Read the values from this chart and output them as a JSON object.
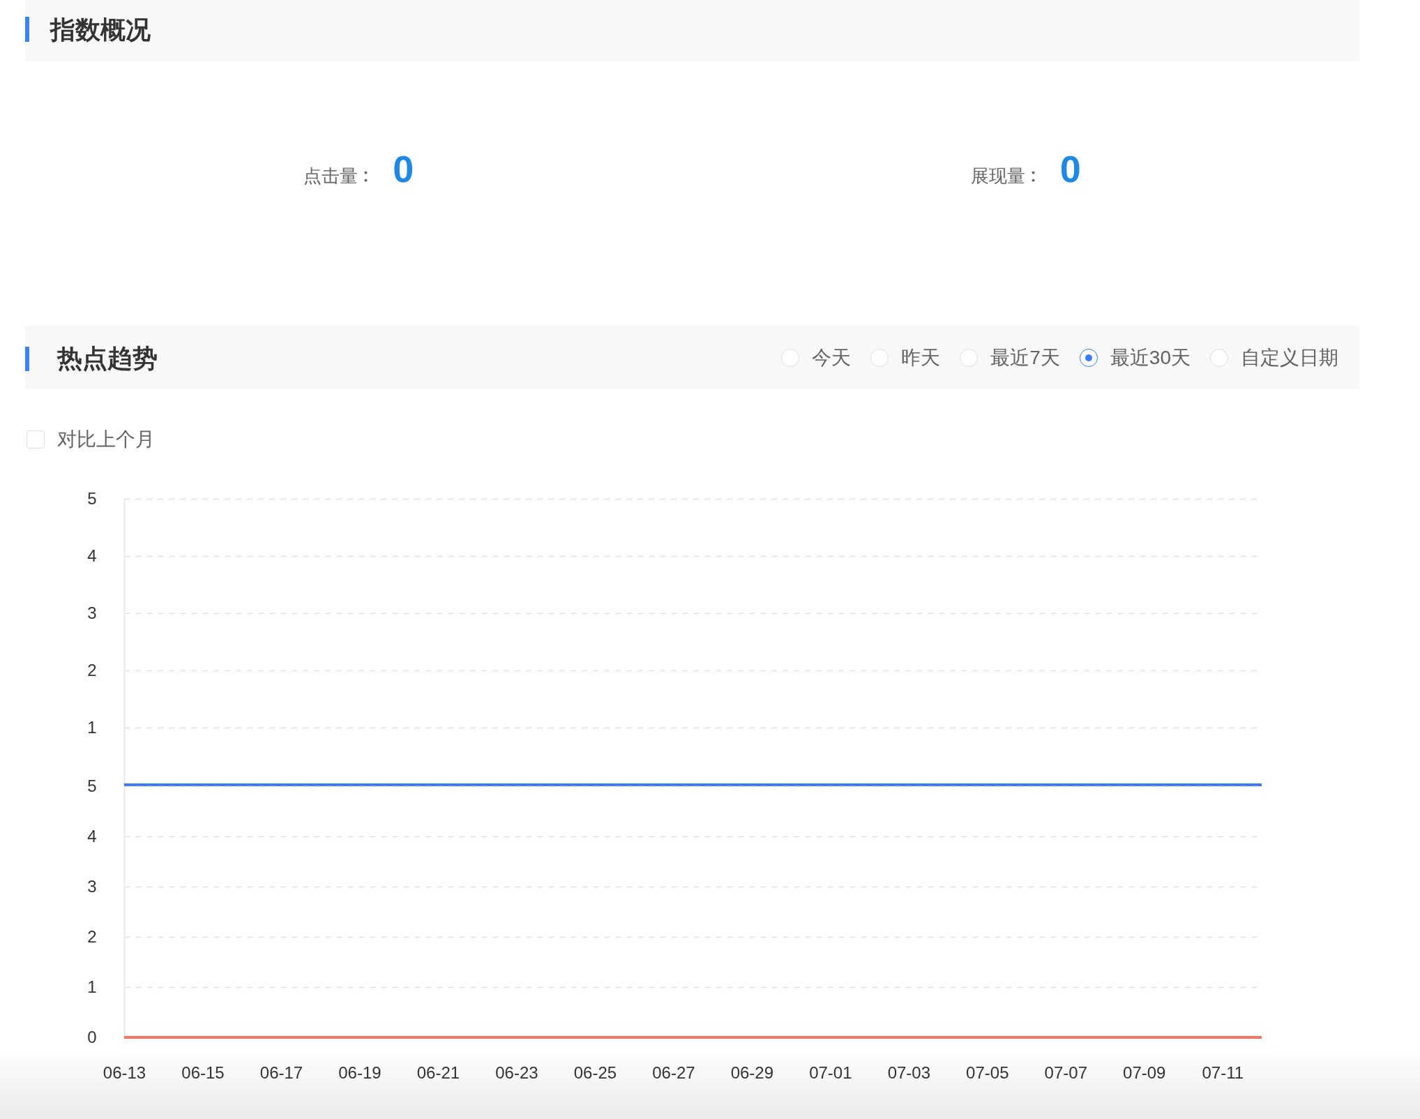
{
  "chart_data": [
    {
      "type": "other",
      "title": "指数概况",
      "categories": [
        "点击量",
        "展现量"
      ],
      "values": [
        0,
        0
      ],
      "color": "#1e88e5",
      "data_labels": true
    },
    {
      "type": "line",
      "title": "热点趋势",
      "annotations": [
        "今天",
        "昨天",
        "最近7天",
        "最近30天",
        "自定义日期",
        "对比上个月"
      ],
      "categories": [
        "06-13",
        null,
        "06-15",
        null,
        "06-17",
        null,
        "06-19",
        null,
        "06-21",
        null,
        "06-23",
        null,
        "06-25",
        null,
        "06-27",
        null,
        "06-29",
        null,
        "07-01",
        null,
        "07-03",
        null,
        "07-05",
        null,
        "07-07",
        null,
        "07-09",
        null,
        "07-11",
        null
      ],
      "values": [
        0,
        0,
        0,
        0,
        0,
        0,
        0,
        0,
        0,
        0,
        0,
        0,
        0,
        0,
        0,
        0,
        0,
        0,
        0,
        0,
        0,
        0,
        0,
        0,
        0,
        0,
        0,
        0,
        0,
        0
      ],
      "color": "#3b7cf5",
      "ylim": [
        0,
        5
      ],
      "yticks": [
        1,
        2,
        3,
        4,
        5
      ],
      "grid": "y",
      "tick_labels": "y"
    },
    {
      "type": "line",
      "categories": [
        "06-13",
        null,
        "06-15",
        null,
        "06-17",
        null,
        "06-19",
        null,
        "06-21",
        null,
        "06-23",
        null,
        "06-25",
        null,
        "06-27",
        null,
        "06-29",
        null,
        "07-01",
        null,
        "07-03",
        null,
        "07-05",
        null,
        "07-07",
        null,
        "07-09",
        null,
        "07-11",
        null
      ],
      "values": [
        0,
        0,
        0,
        0,
        0,
        0,
        0,
        0,
        0,
        0,
        0,
        0,
        0,
        0,
        0,
        0,
        0,
        0,
        0,
        0,
        0,
        0,
        0,
        0,
        0,
        0,
        0,
        0,
        0,
        0
      ],
      "color": "#fa735f",
      "ylim": [
        0,
        5
      ],
      "yticks": [
        0,
        1,
        2,
        3,
        4,
        5
      ],
      "grid": "y"
    }
  ]
}
